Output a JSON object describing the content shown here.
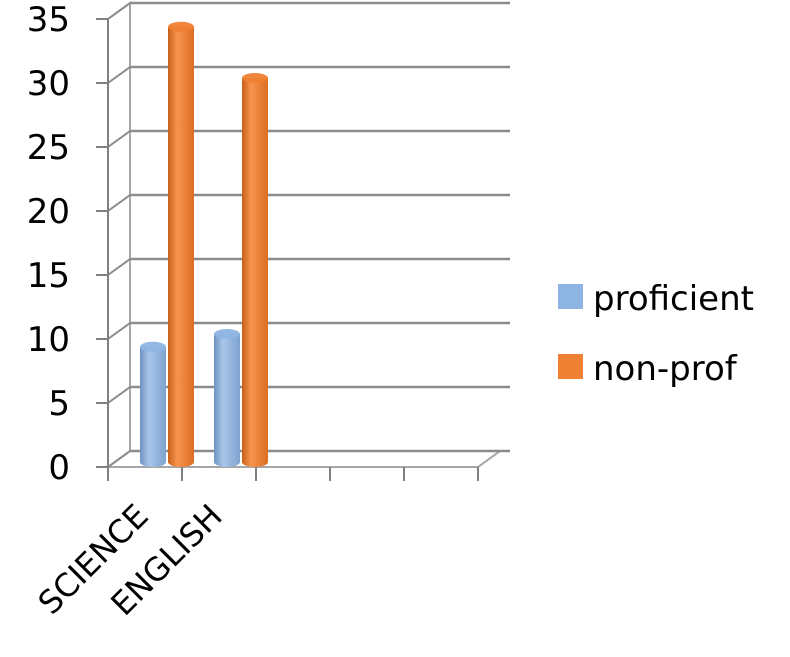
{
  "chart_data": {
    "type": "bar",
    "style": "3d-cylinder",
    "categories": [
      "SCIENCE",
      "ENGLISH",
      "",
      "",
      ""
    ],
    "series": [
      {
        "name": "proficient",
        "values": [
          9,
          10,
          null,
          null,
          null
        ],
        "color": "#8eb4e3"
      },
      {
        "name": "non-prof",
        "values": [
          34,
          30,
          null,
          null,
          null
        ],
        "color": "#f08033"
      }
    ],
    "y_ticks": [
      "0",
      "5",
      "10",
      "15",
      "20",
      "25",
      "30",
      "35"
    ],
    "ylim": [
      0,
      35
    ],
    "grid": true,
    "legend_position": "right"
  }
}
